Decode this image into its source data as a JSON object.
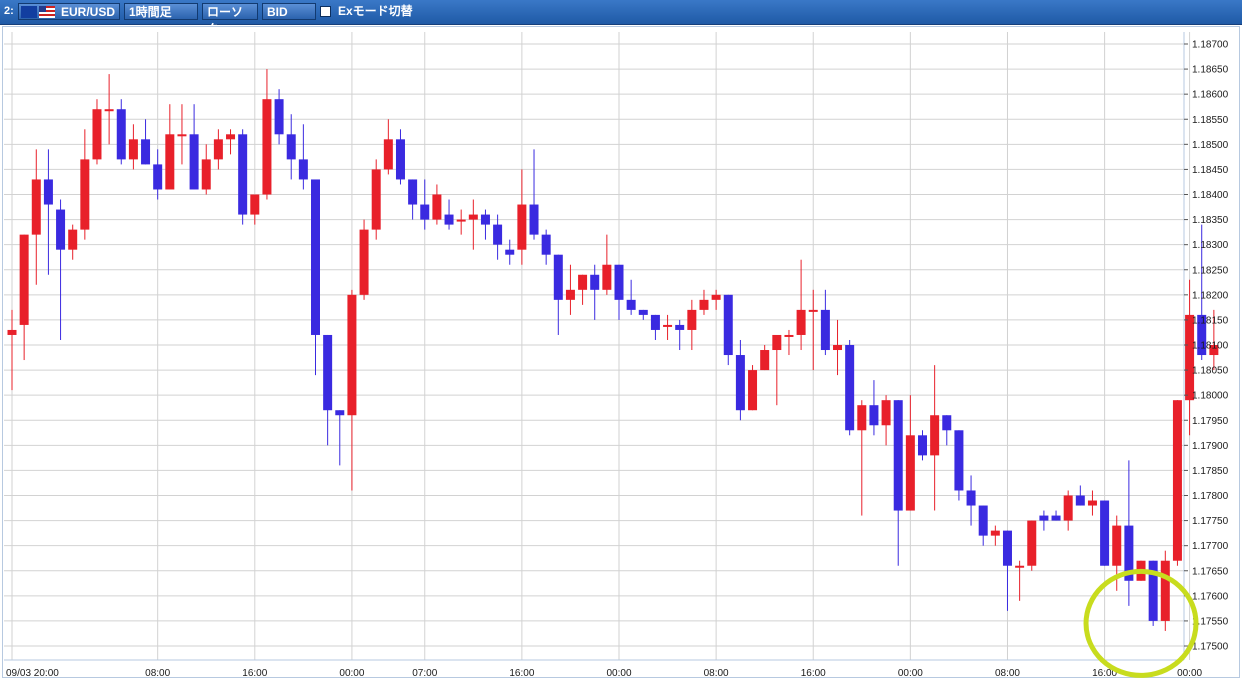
{
  "toolbar": {
    "window_number": "2:",
    "symbol": "EUR/USD",
    "timeframe": "1時間足",
    "chart_type": "ローソク",
    "price_type": "BID",
    "ex_mode": "Exモード切替",
    "flags": [
      "eu-flag-icon",
      "us-flag-icon"
    ]
  },
  "colors": {
    "up": "#e8202a",
    "down": "#3a2ae0",
    "grid": "#d2d2d2",
    "highlight_circle": "#c8dc1e",
    "toolbar": "#2a66b5"
  },
  "chart_data": {
    "type": "candlestick",
    "title": "",
    "xlabel": "",
    "ylabel": "",
    "ylim": [
      1.17475,
      1.18725
    ],
    "grid": true,
    "y_ticks": [
      "1.18700",
      "1.18650",
      "1.18600",
      "1.18550",
      "1.18500",
      "1.18450",
      "1.18400",
      "1.18350",
      "1.18300",
      "1.18250",
      "1.18200",
      "1.18150",
      "1.18100",
      "1.18050",
      "1.18000",
      "1.17950",
      "1.17900",
      "1.17850",
      "1.17800",
      "1.17750",
      "1.17700",
      "1.17650",
      "1.17600",
      "1.17550",
      "1.17500"
    ],
    "x_ticks": [
      {
        "index": 0,
        "label": "09/03 20:00"
      },
      {
        "index": 12,
        "label": "08:00"
      },
      {
        "index": 20,
        "label": "16:00"
      },
      {
        "index": 28,
        "label": "00:00"
      },
      {
        "index": 34,
        "label": "07:00"
      },
      {
        "index": 42,
        "label": "16:00"
      },
      {
        "index": 50,
        "label": "00:00"
      },
      {
        "index": 58,
        "label": "08:00"
      },
      {
        "index": 66,
        "label": "16:00"
      },
      {
        "index": 74,
        "label": "00:00"
      },
      {
        "index": 82,
        "label": "08:00"
      },
      {
        "index": 90,
        "label": "16:00"
      },
      {
        "index": 97,
        "label": "00:00"
      }
    ],
    "candles": [
      {
        "o": 1.1812,
        "h": 1.1817,
        "l": 1.1801,
        "c": 1.1813
      },
      {
        "o": 1.1814,
        "h": 1.1832,
        "l": 1.1807,
        "c": 1.1832
      },
      {
        "o": 1.1832,
        "h": 1.1849,
        "l": 1.1822,
        "c": 1.1843
      },
      {
        "o": 1.1843,
        "h": 1.1849,
        "l": 1.1824,
        "c": 1.1838
      },
      {
        "o": 1.1837,
        "h": 1.1839,
        "l": 1.1811,
        "c": 1.1829
      },
      {
        "o": 1.1829,
        "h": 1.1834,
        "l": 1.1827,
        "c": 1.1833
      },
      {
        "o": 1.1833,
        "h": 1.1853,
        "l": 1.1831,
        "c": 1.1847
      },
      {
        "o": 1.1847,
        "h": 1.1859,
        "l": 1.1846,
        "c": 1.1857
      },
      {
        "o": 1.1857,
        "h": 1.1864,
        "l": 1.185,
        "c": 1.1857
      },
      {
        "o": 1.1857,
        "h": 1.1859,
        "l": 1.1846,
        "c": 1.1847
      },
      {
        "o": 1.1847,
        "h": 1.1854,
        "l": 1.1845,
        "c": 1.1851
      },
      {
        "o": 1.1851,
        "h": 1.1855,
        "l": 1.1846,
        "c": 1.1846
      },
      {
        "o": 1.1846,
        "h": 1.1849,
        "l": 1.1839,
        "c": 1.1841
      },
      {
        "o": 1.1841,
        "h": 1.1858,
        "l": 1.1841,
        "c": 1.1852
      },
      {
        "o": 1.1852,
        "h": 1.1858,
        "l": 1.1846,
        "c": 1.1852
      },
      {
        "o": 1.1852,
        "h": 1.1858,
        "l": 1.1841,
        "c": 1.1841
      },
      {
        "o": 1.1841,
        "h": 1.185,
        "l": 1.184,
        "c": 1.1847
      },
      {
        "o": 1.1847,
        "h": 1.1853,
        "l": 1.1845,
        "c": 1.1851
      },
      {
        "o": 1.1851,
        "h": 1.1853,
        "l": 1.1848,
        "c": 1.1852
      },
      {
        "o": 1.1852,
        "h": 1.1853,
        "l": 1.1834,
        "c": 1.1836
      },
      {
        "o": 1.1836,
        "h": 1.184,
        "l": 1.1834,
        "c": 1.184
      },
      {
        "o": 1.184,
        "h": 1.1865,
        "l": 1.1839,
        "c": 1.1859
      },
      {
        "o": 1.1859,
        "h": 1.1861,
        "l": 1.185,
        "c": 1.1852
      },
      {
        "o": 1.1852,
        "h": 1.1856,
        "l": 1.1843,
        "c": 1.1847
      },
      {
        "o": 1.1847,
        "h": 1.1854,
        "l": 1.1841,
        "c": 1.1843
      },
      {
        "o": 1.1843,
        "h": 1.1843,
        "l": 1.1804,
        "c": 1.1812
      },
      {
        "o": 1.1812,
        "h": 1.1812,
        "l": 1.179,
        "c": 1.1797
      },
      {
        "o": 1.1797,
        "h": 1.1797,
        "l": 1.1786,
        "c": 1.1796
      },
      {
        "o": 1.1796,
        "h": 1.1821,
        "l": 1.1781,
        "c": 1.182
      },
      {
        "o": 1.182,
        "h": 1.1835,
        "l": 1.1819,
        "c": 1.1833
      },
      {
        "o": 1.1833,
        "h": 1.1847,
        "l": 1.1831,
        "c": 1.1845
      },
      {
        "o": 1.1845,
        "h": 1.1855,
        "l": 1.1844,
        "c": 1.1851
      },
      {
        "o": 1.1851,
        "h": 1.1853,
        "l": 1.1842,
        "c": 1.1843
      },
      {
        "o": 1.1843,
        "h": 1.1843,
        "l": 1.1835,
        "c": 1.1838
      },
      {
        "o": 1.1838,
        "h": 1.1843,
        "l": 1.1833,
        "c": 1.1835
      },
      {
        "o": 1.1835,
        "h": 1.1842,
        "l": 1.1834,
        "c": 1.184
      },
      {
        "o": 1.1836,
        "h": 1.1839,
        "l": 1.1833,
        "c": 1.1834
      },
      {
        "o": 1.1835,
        "h": 1.1837,
        "l": 1.1832,
        "c": 1.1835
      },
      {
        "o": 1.1835,
        "h": 1.1839,
        "l": 1.1829,
        "c": 1.1836
      },
      {
        "o": 1.1836,
        "h": 1.1837,
        "l": 1.1831,
        "c": 1.1834
      },
      {
        "o": 1.1834,
        "h": 1.1836,
        "l": 1.1827,
        "c": 1.183
      },
      {
        "o": 1.1829,
        "h": 1.1831,
        "l": 1.1826,
        "c": 1.1828
      },
      {
        "o": 1.1829,
        "h": 1.1845,
        "l": 1.1826,
        "c": 1.1838
      },
      {
        "o": 1.1838,
        "h": 1.1849,
        "l": 1.1831,
        "c": 1.1832
      },
      {
        "o": 1.1832,
        "h": 1.1833,
        "l": 1.1826,
        "c": 1.1828
      },
      {
        "o": 1.1828,
        "h": 1.1828,
        "l": 1.1812,
        "c": 1.1819
      },
      {
        "o": 1.1819,
        "h": 1.1826,
        "l": 1.1816,
        "c": 1.1821
      },
      {
        "o": 1.1821,
        "h": 1.1824,
        "l": 1.1818,
        "c": 1.1824
      },
      {
        "o": 1.1824,
        "h": 1.1826,
        "l": 1.1815,
        "c": 1.1821
      },
      {
        "o": 1.1821,
        "h": 1.1832,
        "l": 1.182,
        "c": 1.1826
      },
      {
        "o": 1.1826,
        "h": 1.1826,
        "l": 1.1815,
        "c": 1.1819
      },
      {
        "o": 1.1819,
        "h": 1.1823,
        "l": 1.1816,
        "c": 1.1817
      },
      {
        "o": 1.1817,
        "h": 1.1817,
        "l": 1.1815,
        "c": 1.1816
      },
      {
        "o": 1.1816,
        "h": 1.1816,
        "l": 1.1811,
        "c": 1.1813
      },
      {
        "o": 1.1814,
        "h": 1.1816,
        "l": 1.1811,
        "c": 1.1814
      },
      {
        "o": 1.1814,
        "h": 1.1815,
        "l": 1.1809,
        "c": 1.1813
      },
      {
        "o": 1.1813,
        "h": 1.1819,
        "l": 1.1809,
        "c": 1.1817
      },
      {
        "o": 1.1817,
        "h": 1.1821,
        "l": 1.1816,
        "c": 1.1819
      },
      {
        "o": 1.1819,
        "h": 1.1821,
        "l": 1.1817,
        "c": 1.182
      },
      {
        "o": 1.182,
        "h": 1.182,
        "l": 1.1806,
        "c": 1.1808
      },
      {
        "o": 1.1808,
        "h": 1.1811,
        "l": 1.1795,
        "c": 1.1797
      },
      {
        "o": 1.1797,
        "h": 1.1806,
        "l": 1.1797,
        "c": 1.1805
      },
      {
        "o": 1.1805,
        "h": 1.181,
        "l": 1.1805,
        "c": 1.1809
      },
      {
        "o": 1.1809,
        "h": 1.1811,
        "l": 1.1798,
        "c": 1.1812
      },
      {
        "o": 1.1812,
        "h": 1.1813,
        "l": 1.1808,
        "c": 1.1812
      },
      {
        "o": 1.1812,
        "h": 1.1827,
        "l": 1.1809,
        "c": 1.1817
      },
      {
        "o": 1.1817,
        "h": 1.1821,
        "l": 1.1805,
        "c": 1.1817
      },
      {
        "o": 1.1817,
        "h": 1.1821,
        "l": 1.1808,
        "c": 1.1809
      },
      {
        "o": 1.1809,
        "h": 1.1815,
        "l": 1.1804,
        "c": 1.181
      },
      {
        "o": 1.181,
        "h": 1.1811,
        "l": 1.1792,
        "c": 1.1793
      },
      {
        "o": 1.1793,
        "h": 1.1799,
        "l": 1.1776,
        "c": 1.1798
      },
      {
        "o": 1.1798,
        "h": 1.1803,
        "l": 1.1792,
        "c": 1.1794
      },
      {
        "o": 1.1794,
        "h": 1.18,
        "l": 1.179,
        "c": 1.1799
      },
      {
        "o": 1.1799,
        "h": 1.1799,
        "l": 1.1766,
        "c": 1.1777
      },
      {
        "o": 1.1777,
        "h": 1.18,
        "l": 1.1777,
        "c": 1.1792
      },
      {
        "o": 1.1792,
        "h": 1.1793,
        "l": 1.1787,
        "c": 1.1788
      },
      {
        "o": 1.1788,
        "h": 1.1806,
        "l": 1.1777,
        "c": 1.1796
      },
      {
        "o": 1.1796,
        "h": 1.1796,
        "l": 1.179,
        "c": 1.1793
      },
      {
        "o": 1.1793,
        "h": 1.1793,
        "l": 1.1779,
        "c": 1.1781
      },
      {
        "o": 1.1781,
        "h": 1.1784,
        "l": 1.1774,
        "c": 1.1778
      },
      {
        "o": 1.1778,
        "h": 1.1778,
        "l": 1.177,
        "c": 1.1772
      },
      {
        "o": 1.1772,
        "h": 1.1774,
        "l": 1.177,
        "c": 1.1773
      },
      {
        "o": 1.1773,
        "h": 1.1773,
        "l": 1.1757,
        "c": 1.1766
      },
      {
        "o": 1.1766,
        "h": 1.1767,
        "l": 1.1759,
        "c": 1.1766
      },
      {
        "o": 1.1766,
        "h": 1.1775,
        "l": 1.1765,
        "c": 1.1775
      },
      {
        "o": 1.1776,
        "h": 1.1777,
        "l": 1.1773,
        "c": 1.1775
      },
      {
        "o": 1.1776,
        "h": 1.1777,
        "l": 1.1775,
        "c": 1.1775
      },
      {
        "o": 1.1775,
        "h": 1.1781,
        "l": 1.1773,
        "c": 1.178
      },
      {
        "o": 1.178,
        "h": 1.1782,
        "l": 1.1778,
        "c": 1.1778
      },
      {
        "o": 1.1778,
        "h": 1.1781,
        "l": 1.1776,
        "c": 1.1779
      },
      {
        "o": 1.1779,
        "h": 1.1779,
        "l": 1.1766,
        "c": 1.1766
      },
      {
        "o": 1.1766,
        "h": 1.1776,
        "l": 1.1761,
        "c": 1.1774
      },
      {
        "o": 1.1774,
        "h": 1.1787,
        "l": 1.1758,
        "c": 1.1763
      },
      {
        "o": 1.1763,
        "h": 1.1767,
        "l": 1.1763,
        "c": 1.1767
      },
      {
        "o": 1.1767,
        "h": 1.1767,
        "l": 1.1754,
        "c": 1.1755
      },
      {
        "o": 1.1755,
        "h": 1.1769,
        "l": 1.1753,
        "c": 1.1767
      },
      {
        "o": 1.1767,
        "h": 1.1799,
        "l": 1.1766,
        "c": 1.1799
      },
      {
        "o": 1.1799,
        "h": 1.1823,
        "l": 1.1792,
        "c": 1.1816
      },
      {
        "o": 1.1816,
        "h": 1.1834,
        "l": 1.1807,
        "c": 1.1808
      },
      {
        "o": 1.1808,
        "h": 1.1817,
        "l": 1.1805,
        "c": 1.181
      }
    ],
    "highlight": {
      "shape": "circle",
      "center_index": 93,
      "center_price": 1.17545
    }
  }
}
